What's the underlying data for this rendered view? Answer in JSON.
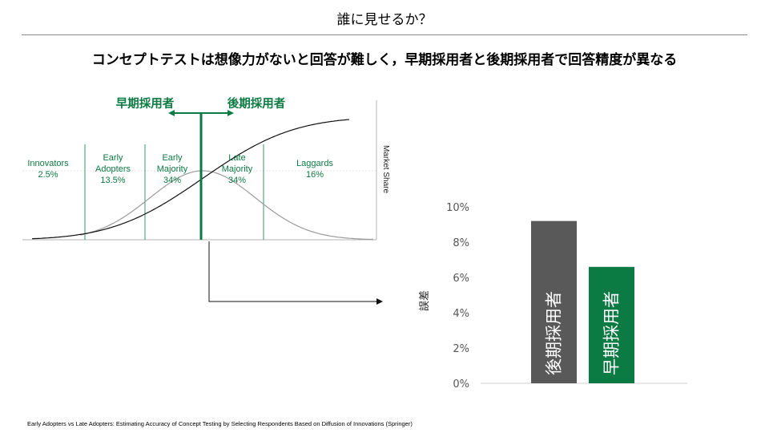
{
  "header": {
    "title": "誰に見せるか？"
  },
  "headline": "コンセプトテストは想像力がないと回答が難しく，早期採用者と後期採用者で回答精度が異なる",
  "diagram": {
    "early_adopters_label": "早期採用者",
    "late_adopters_label": "後期採用者",
    "market_share_label": "Market Share",
    "segments": [
      {
        "line1": "Innovators",
        "line2": "2.5%",
        "line3": ""
      },
      {
        "line1": "Early",
        "line2": "Adopters",
        "line3": "13.5%"
      },
      {
        "line1": "Early",
        "line2": "Majority",
        "line3": "34%"
      },
      {
        "line1": "Late",
        "line2": "Majority",
        "line3": "34%"
      },
      {
        "line1": "Laggards",
        "line2": "16%",
        "line3": ""
      }
    ]
  },
  "chart_data": {
    "type": "bar",
    "title": "",
    "xlabel": "",
    "ylabel": "誤差",
    "categories": [
      "後期採用者",
      "早期採用者"
    ],
    "values": [
      9.2,
      6.6
    ],
    "colors": [
      "#595959",
      "#0c7a43"
    ],
    "ylim": [
      0,
      10
    ],
    "yticks": [
      0,
      2,
      4,
      6,
      8,
      10
    ],
    "ytick_labels": [
      "0%",
      "2%",
      "4%",
      "6%",
      "8%",
      "10%"
    ]
  },
  "colors": {
    "accent_green": "#0c7a43",
    "bar_gray": "#595959"
  },
  "footnote": "Early Adopters vs Late Adopters: Estimating Accuracy of Concept Testing by Selecting Respondents Based on Diffusion of Innovations (Springer)"
}
